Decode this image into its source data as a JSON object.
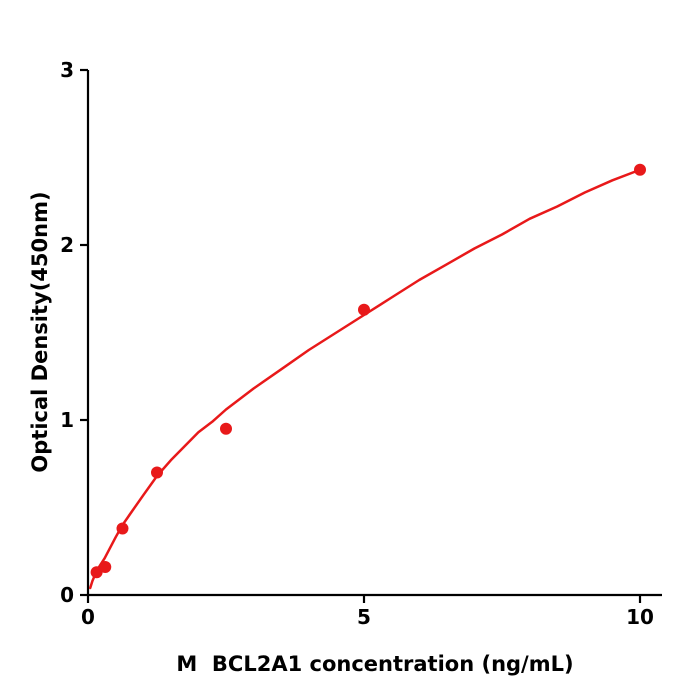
{
  "chart_data": {
    "type": "scatter",
    "title": "",
    "xlabel": "M  BCL2A1 concentration (ng/mL)",
    "ylabel": "Optical Density(450nm)",
    "xlim": [
      0,
      10
    ],
    "ylim": [
      0,
      3
    ],
    "xticks": [
      0,
      5,
      10
    ],
    "yticks": [
      0,
      1,
      2,
      3
    ],
    "grid": false,
    "legend": "none",
    "color": "#e8191a",
    "axis_color": "#000000",
    "points": [
      {
        "x": 0.156,
        "y": 0.13
      },
      {
        "x": 0.3125,
        "y": 0.16
      },
      {
        "x": 0.625,
        "y": 0.38
      },
      {
        "x": 1.25,
        "y": 0.7
      },
      {
        "x": 2.5,
        "y": 0.95
      },
      {
        "x": 5,
        "y": 1.63
      },
      {
        "x": 10,
        "y": 2.43
      }
    ],
    "fit_curve": [
      [
        0.04,
        0.04
      ],
      [
        0.08,
        0.08
      ],
      [
        0.12,
        0.11
      ],
      [
        0.16,
        0.14
      ],
      [
        0.22,
        0.17
      ],
      [
        0.3,
        0.21
      ],
      [
        0.4,
        0.27
      ],
      [
        0.5,
        0.33
      ],
      [
        0.625,
        0.4
      ],
      [
        0.8,
        0.48
      ],
      [
        1.0,
        0.57
      ],
      [
        1.25,
        0.68
      ],
      [
        1.5,
        0.77
      ],
      [
        1.75,
        0.85
      ],
      [
        2.0,
        0.93
      ],
      [
        2.25,
        0.99
      ],
      [
        2.5,
        1.06
      ],
      [
        3.0,
        1.18
      ],
      [
        3.5,
        1.29
      ],
      [
        4.0,
        1.4
      ],
      [
        4.5,
        1.5
      ],
      [
        5.0,
        1.6
      ],
      [
        5.5,
        1.7
      ],
      [
        6.0,
        1.8
      ],
      [
        6.5,
        1.89
      ],
      [
        7.0,
        1.98
      ],
      [
        7.5,
        2.06
      ],
      [
        8.0,
        2.15
      ],
      [
        8.5,
        2.22
      ],
      [
        9.0,
        2.3
      ],
      [
        9.5,
        2.37
      ],
      [
        10.0,
        2.43
      ]
    ]
  }
}
